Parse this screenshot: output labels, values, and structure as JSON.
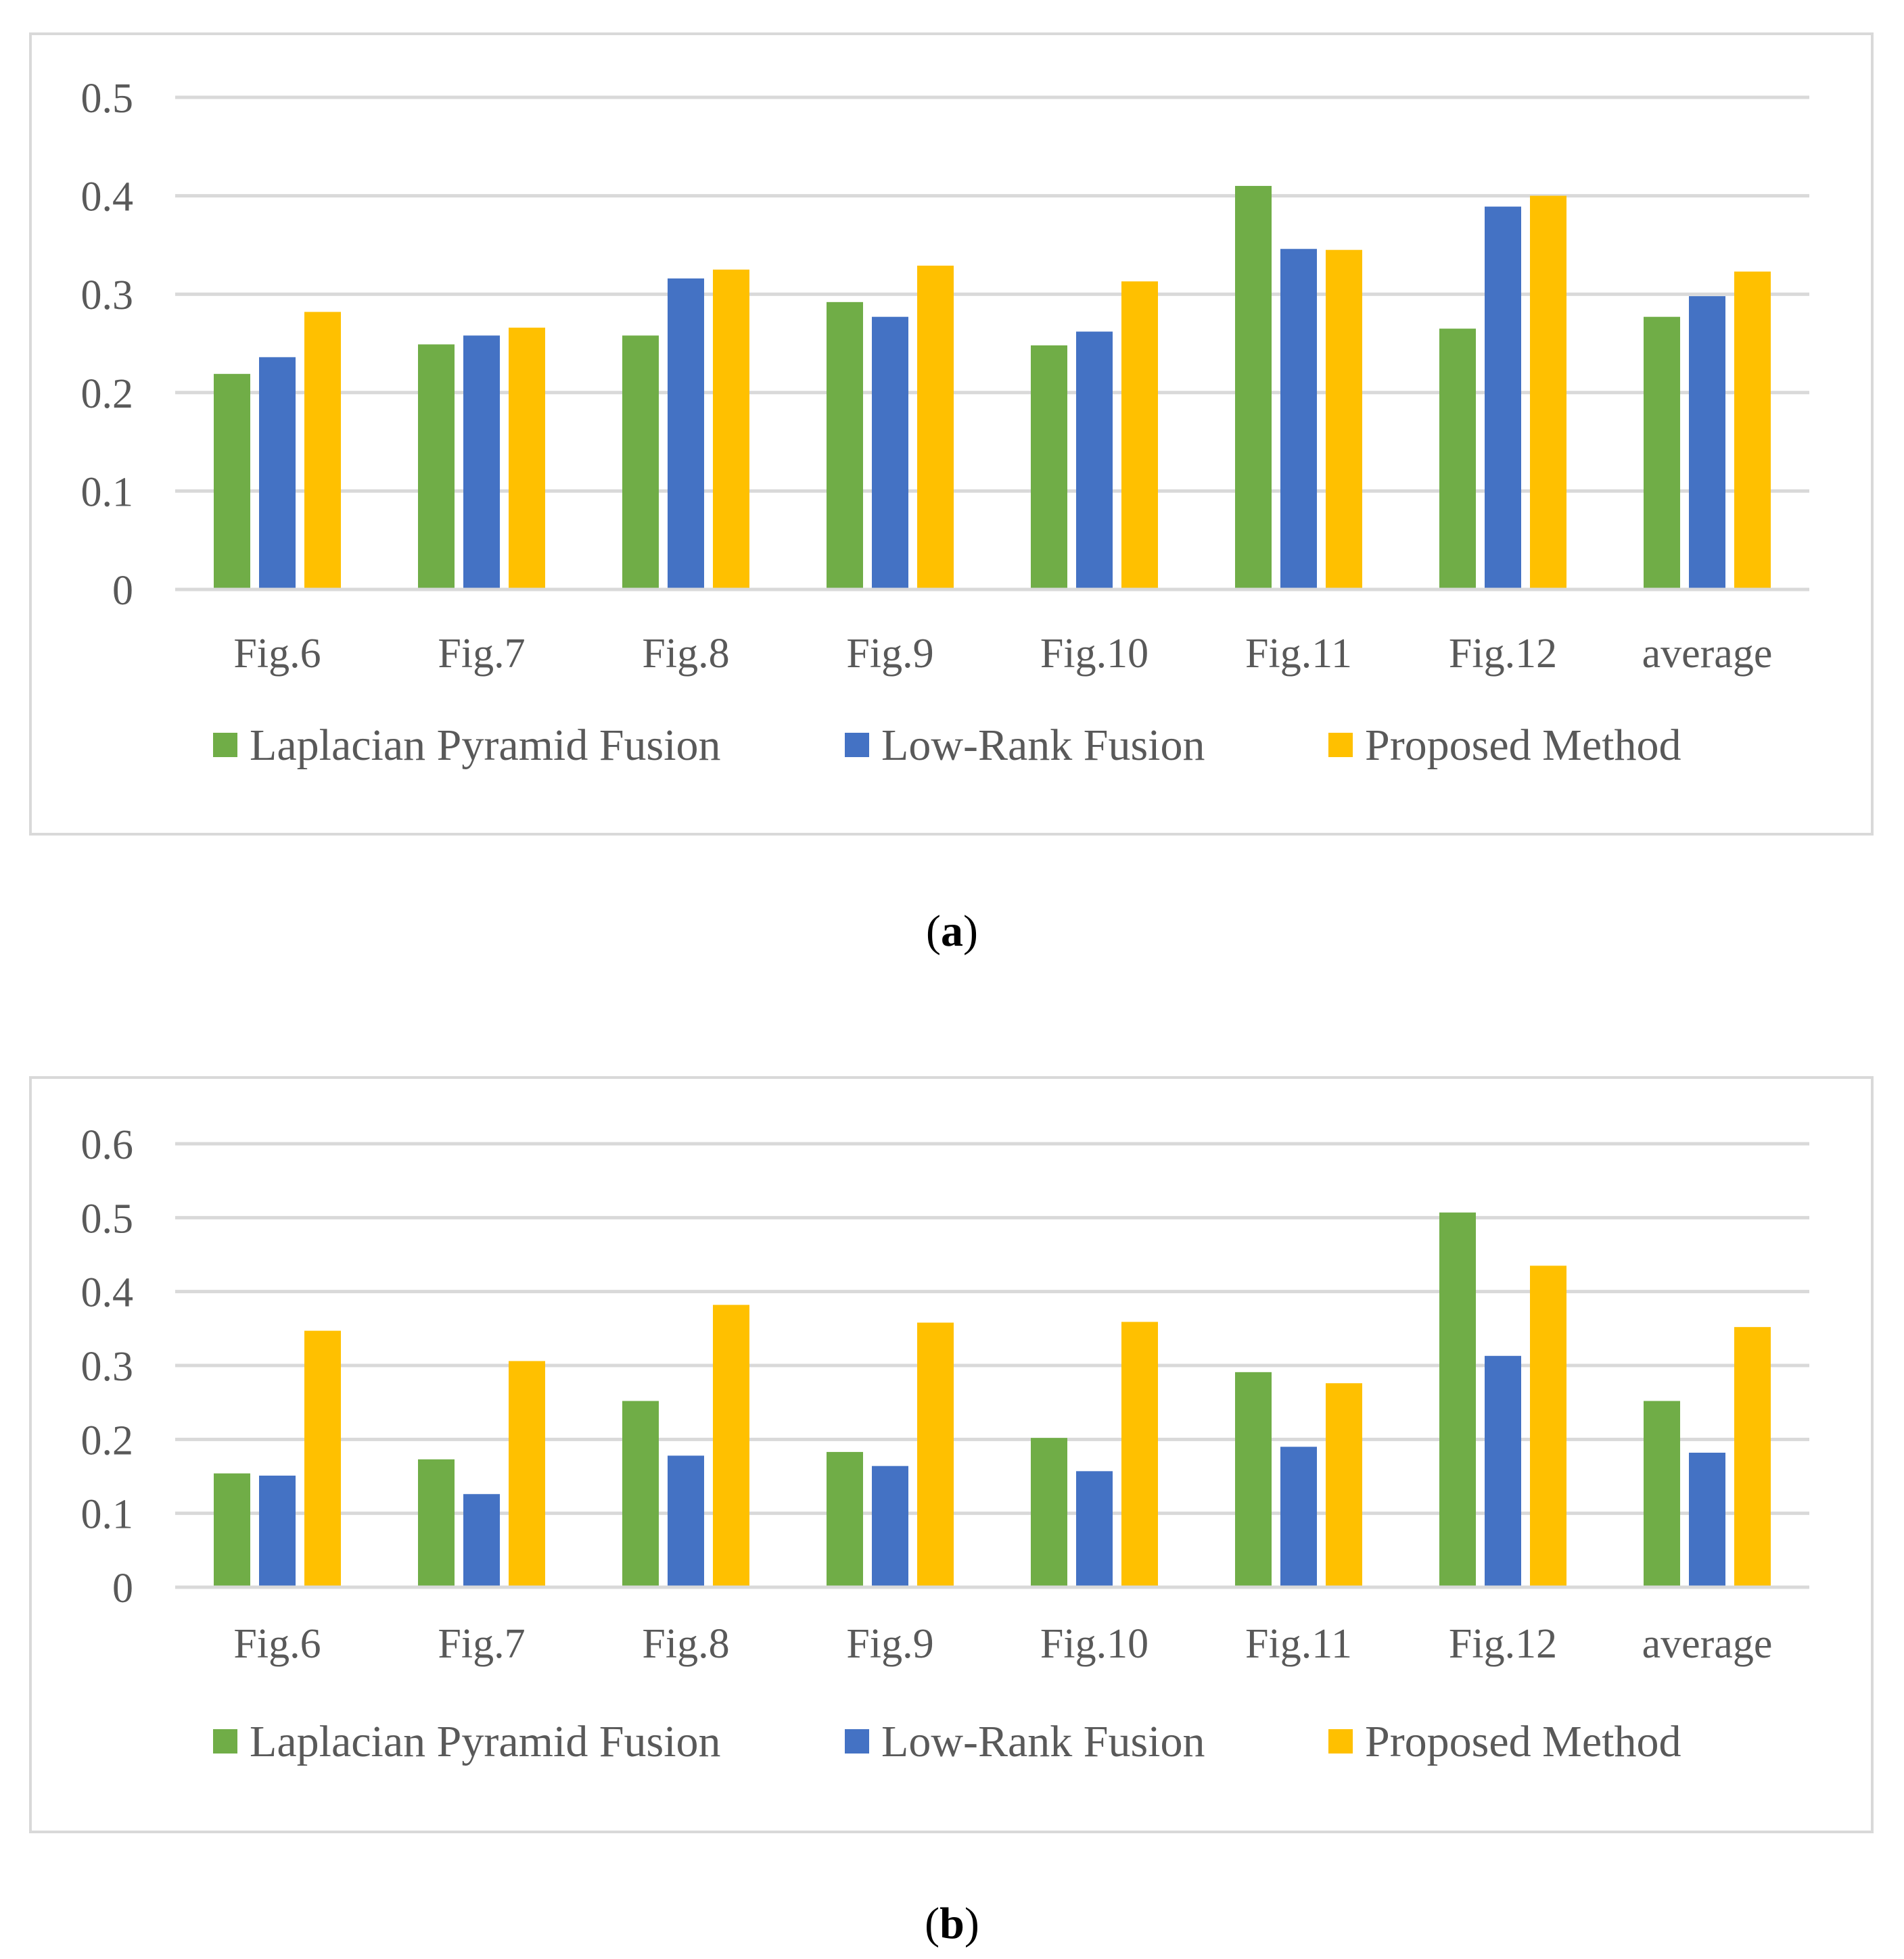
{
  "colors": {
    "series": [
      "#70ad47",
      "#4472c4",
      "#ffc000"
    ],
    "grid": "#d9d9d9",
    "text": "#595959"
  },
  "captions": {
    "a": "a",
    "b": "b"
  },
  "chart_data": [
    {
      "type": "bar",
      "panel": "a",
      "title": "",
      "xlabel": "",
      "ylabel": "",
      "categories": [
        "Fig.6",
        "Fig.7",
        "Fig.8",
        "Fig.9",
        "Fig.10",
        "Fig.11",
        "Fig.12",
        "average"
      ],
      "ylim": [
        0,
        0.5
      ],
      "yticks": [
        "0",
        "0.1",
        "0.2",
        "0.3",
        "0.4",
        "0.5"
      ],
      "grid": true,
      "legend": "bottom",
      "series": [
        {
          "name": "Laplacian Pyramid Fusion",
          "color": "#70ad47",
          "values": [
            0.219,
            0.249,
            0.258,
            0.292,
            0.248,
            0.41,
            0.265,
            0.277
          ]
        },
        {
          "name": "Low-Rank Fusion",
          "color": "#4472c4",
          "values": [
            0.236,
            0.258,
            0.316,
            0.277,
            0.262,
            0.346,
            0.389,
            0.298
          ]
        },
        {
          "name": "Proposed Method",
          "color": "#ffc000",
          "values": [
            0.282,
            0.266,
            0.325,
            0.329,
            0.313,
            0.345,
            0.4,
            0.323
          ]
        }
      ]
    },
    {
      "type": "bar",
      "panel": "b",
      "title": "",
      "xlabel": "",
      "ylabel": "",
      "categories": [
        "Fig.6",
        "Fig.7",
        "Fig.8",
        "Fig.9",
        "Fig.10",
        "Fig.11",
        "Fig.12",
        "average"
      ],
      "ylim": [
        0,
        0.6
      ],
      "yticks": [
        "0",
        "0.1",
        "0.2",
        "0.3",
        "0.4",
        "0.5",
        "0.6"
      ],
      "grid": true,
      "legend": "bottom",
      "series": [
        {
          "name": "Laplacian Pyramid Fusion",
          "color": "#70ad47",
          "values": [
            0.154,
            0.173,
            0.252,
            0.183,
            0.202,
            0.291,
            0.507,
            0.252
          ]
        },
        {
          "name": "Low-Rank Fusion",
          "color": "#4472c4",
          "values": [
            0.151,
            0.126,
            0.178,
            0.164,
            0.157,
            0.19,
            0.313,
            0.182
          ]
        },
        {
          "name": "Proposed Method",
          "color": "#ffc000",
          "values": [
            0.347,
            0.306,
            0.382,
            0.358,
            0.359,
            0.276,
            0.435,
            0.352
          ]
        }
      ]
    }
  ]
}
